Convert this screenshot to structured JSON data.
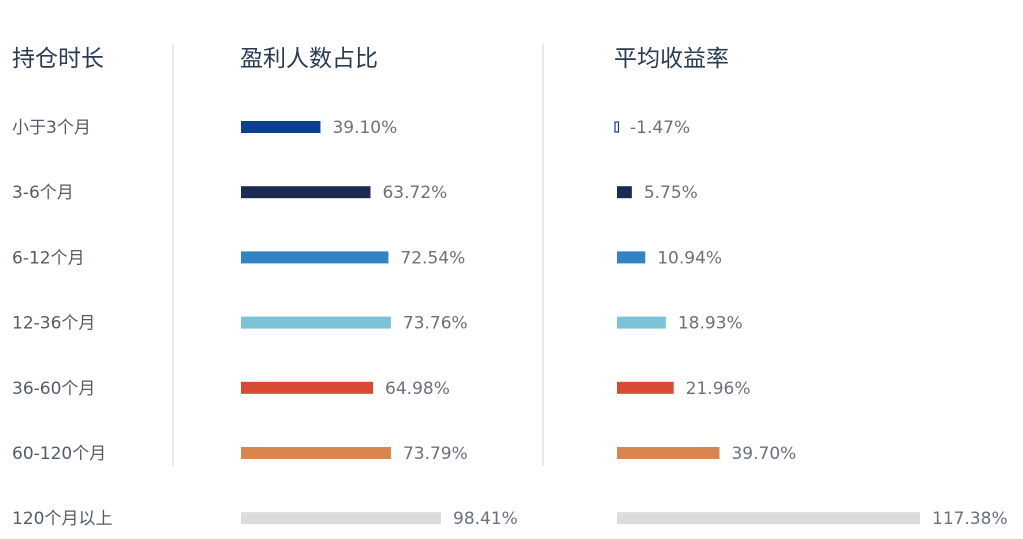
{
  "chart_data": {
    "type": "bar",
    "headers": {
      "category": "持仓时长",
      "series_a": "盈利人数占比",
      "series_b": "平均收益率"
    },
    "categories": [
      "小于3个月",
      "3-6个月",
      "6-12个月",
      "12-36个月",
      "36-60个月",
      "60-120个月",
      "120个月以上"
    ],
    "series": [
      {
        "name": "盈利人数占比",
        "values": [
          39.1,
          63.72,
          72.54,
          73.76,
          64.98,
          73.79,
          98.41
        ],
        "labels": [
          "39.10%",
          "63.72%",
          "72.54%",
          "73.76%",
          "64.98%",
          "73.79%",
          "98.41%"
        ]
      },
      {
        "name": "平均收益率",
        "values": [
          -1.47,
          5.75,
          10.94,
          18.93,
          21.96,
          39.7,
          117.38
        ],
        "labels": [
          "-1.47%",
          "5.75%",
          "10.94%",
          "18.93%",
          "21.96%",
          "39.70%",
          "117.38%"
        ]
      }
    ],
    "colors": [
      "#0d3f8c",
      "#1b2a52",
      "#3283c4",
      "#7cc2d6",
      "#d84b33",
      "#d9854f",
      "#dcdcdc"
    ],
    "grid": false,
    "legend": "none"
  }
}
